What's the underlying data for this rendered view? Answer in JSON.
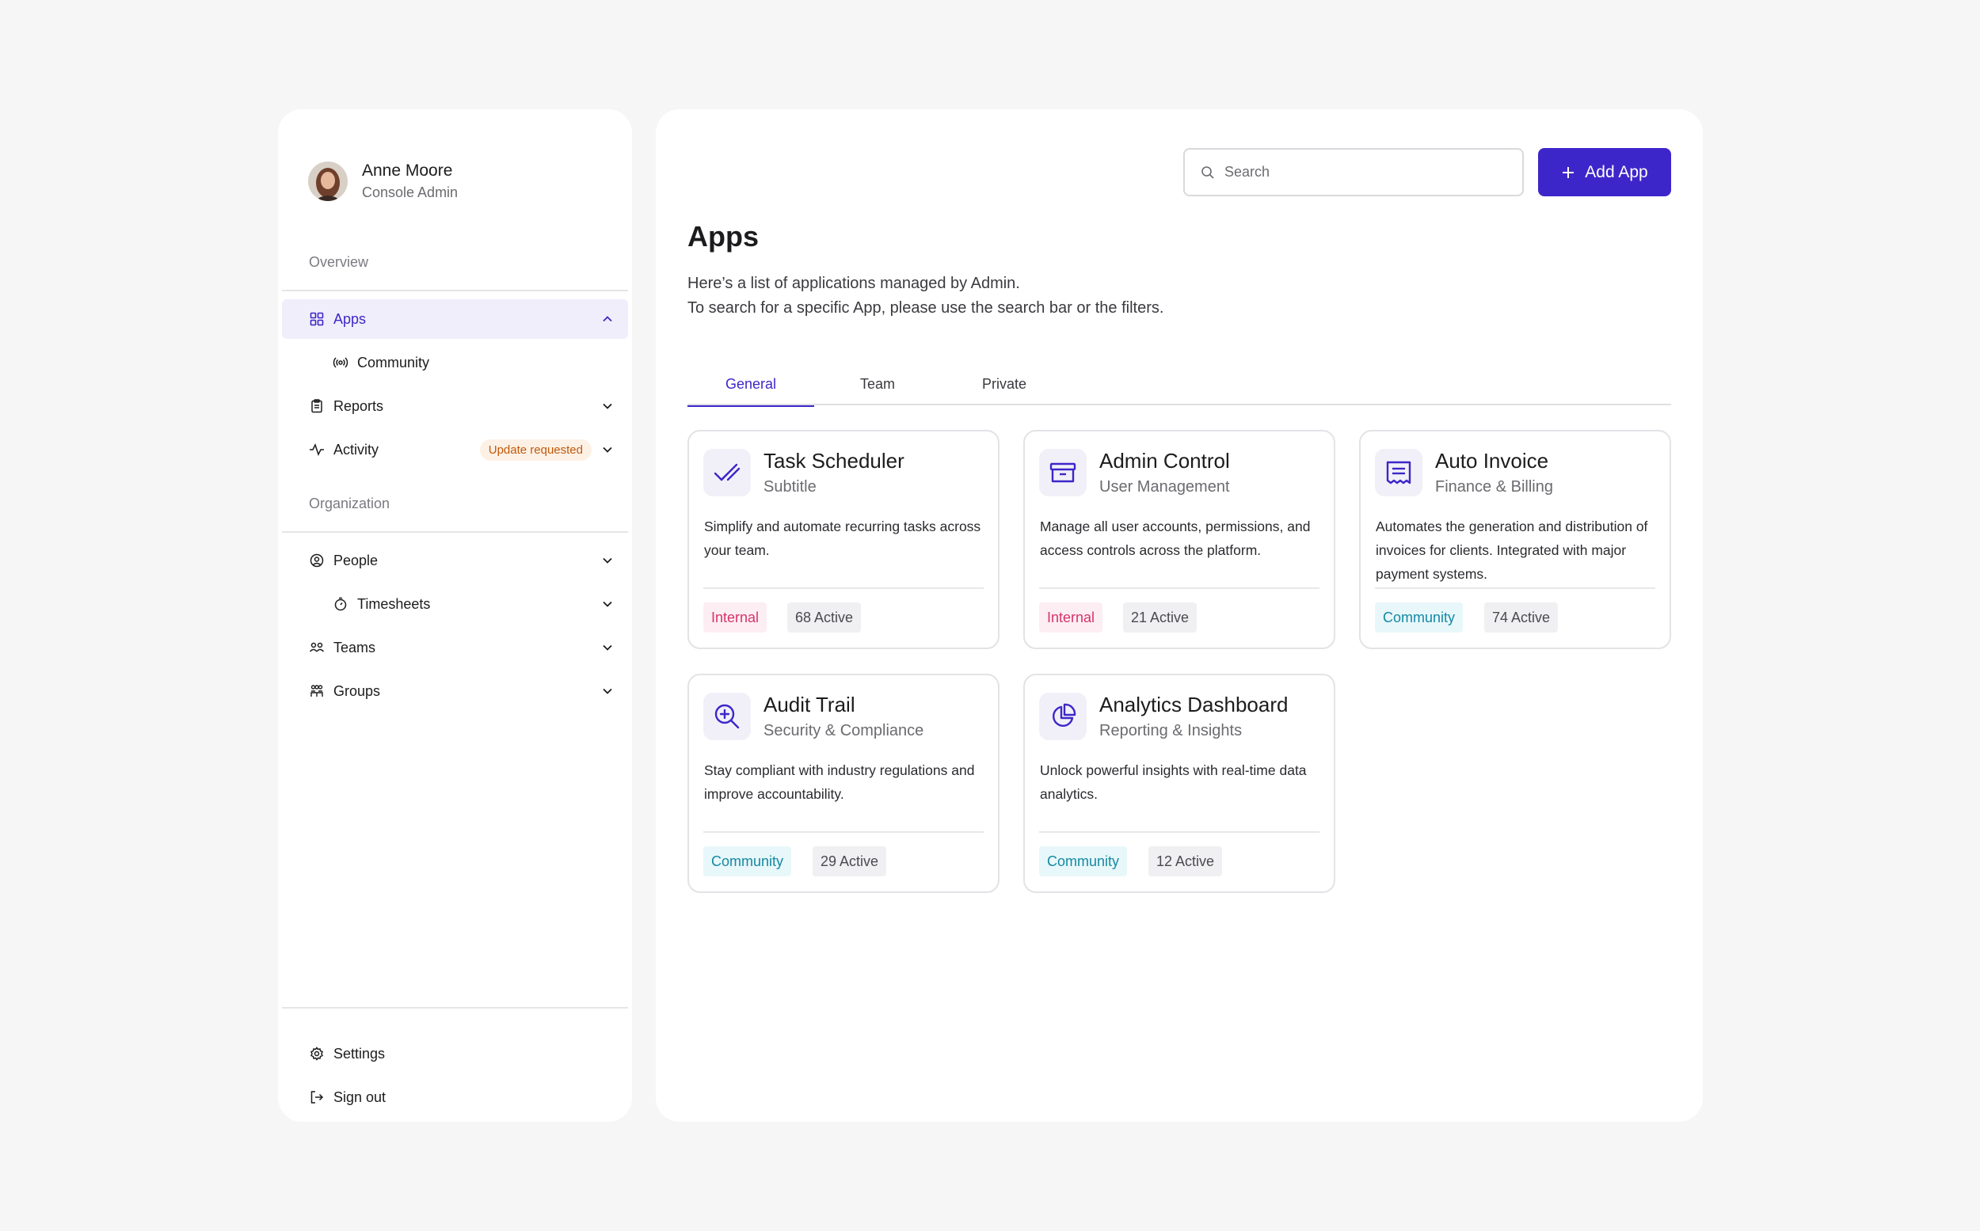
{
  "user": {
    "name": "Anne Moore",
    "role": "Console Admin"
  },
  "sidebar": {
    "overview_label": "Overview",
    "organization_label": "Organization",
    "items": {
      "apps": "Apps",
      "community": "Community",
      "reports": "Reports",
      "activity": "Activity",
      "activity_badge": "Update requested",
      "people": "People",
      "timesheets": "Timesheets",
      "teams": "Teams",
      "groups": "Groups",
      "settings": "Settings",
      "signout": "Sign out"
    }
  },
  "header": {
    "search_placeholder": "Search",
    "add_button": "Add App"
  },
  "page": {
    "title": "Apps",
    "desc_line1": "Here’s a list of applications managed by Admin.",
    "desc_line2": "To search for a specific App, please use the search bar or the filters."
  },
  "tabs": [
    "General",
    "Team",
    "Private"
  ],
  "cards": [
    {
      "title": "Task Scheduler",
      "subtitle": "Subtitle",
      "description": "Simplify and automate recurring tasks across your team.",
      "tag": "Internal",
      "count": "68 Active",
      "icon": "check-icon"
    },
    {
      "title": "Admin Control",
      "subtitle": "User Management",
      "description": "Manage all user accounts, permissions, and access controls across the platform.",
      "tag": "Internal",
      "count": "21 Active",
      "icon": "archive-icon"
    },
    {
      "title": "Auto Invoice",
      "subtitle": "Finance & Billing",
      "description": "Automates the generation and distribution of invoices for clients. Integrated with major payment systems.",
      "tag": "Community",
      "count": "74 Active",
      "icon": "receipt-icon"
    },
    {
      "title": "Audit Trail",
      "subtitle": "Security & Compliance",
      "description": "Stay compliant with industry regulations and improve accountability.",
      "tag": "Community",
      "count": "29 Active",
      "icon": "zoom-in-icon"
    },
    {
      "title": "Analytics Dashboard",
      "subtitle": "Reporting & Insights",
      "description": "Unlock powerful insights with real-time data analytics.",
      "tag": "Community",
      "count": "12 Active",
      "icon": "pie-chart-icon"
    }
  ],
  "colors": {
    "accent": "#3d26c9",
    "internal_tag": "#d6336c",
    "community_tag": "#1489a3",
    "update_badge": "#c2590b"
  }
}
